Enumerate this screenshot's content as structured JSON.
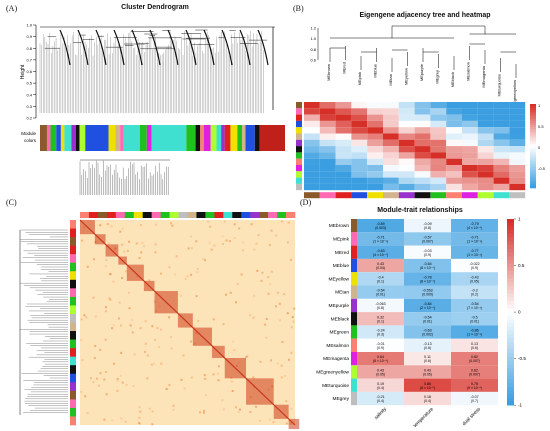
{
  "panels": {
    "a": {
      "letter": "(A)",
      "title": "Cluster Dendrogram",
      "ylabel": "Height",
      "yticks": [
        "1.0",
        "0.9",
        "0.8",
        "0.7",
        "0.6",
        "0.5",
        "0.4",
        "0.3",
        "0.2"
      ],
      "colorbar_label_1": "Module",
      "colorbar_label_2": "colors"
    },
    "b": {
      "letter": "(B)",
      "title": "Eigengene adjacency tree and heatmap",
      "yticks": [
        "1.2",
        "1.0",
        "0.8",
        "0.6"
      ],
      "modules": [
        "MEbrown",
        "MEred",
        "MEpink",
        "MEblue",
        "MEtan",
        "MEyellow",
        "MEpurple",
        "MEgrey",
        "MEblack",
        "MEsalmon",
        "MEmagenta",
        "MEturquoise",
        "MEgreenyellow"
      ],
      "legend_ticks": [
        "1",
        "0.5",
        "0",
        "-0.5"
      ]
    },
    "c": {
      "letter": "(C)"
    },
    "d": {
      "letter": "(D)",
      "title": "Module-trait relationships",
      "traits": [
        "salinity",
        "temperature",
        "dual stress"
      ],
      "legend_ticks": [
        "1",
        "0.5",
        "0",
        "-0.5",
        "-1"
      ]
    }
  },
  "colors": {
    "high": "#d62f27",
    "low": "#3a9ee0",
    "mid": "#ffffff",
    "heat_bg": "#fde3b8",
    "heat_dark": "#c7361c"
  },
  "chart_data": [
    {
      "type": "heatmap",
      "panel": "D",
      "title": "Module-trait relationships",
      "rows": [
        {
          "module": "MEbrown",
          "color": "#8b5a2b",
          "cells": [
            {
              "r": "-0.89",
              "p": "(0.003)",
              "v": -0.89
            },
            {
              "r": "-0.09",
              "p": "(0.8)",
              "v": -0.09
            },
            {
              "r": "-0.79",
              "p": "(4 × 10⁻⁴)",
              "v": -0.79
            }
          ]
        },
        {
          "module": "MEpink",
          "color": "#ff69b4",
          "cells": [
            {
              "r": "-0.71",
              "p": "(1 × 10⁻³)",
              "v": -0.71
            },
            {
              "r": "-0.57",
              "p": "(0.007)",
              "v": -0.57
            },
            {
              "r": "-0.71",
              "p": "(1 × 10⁻³)",
              "v": -0.71
            }
          ]
        },
        {
          "module": "MEred",
          "color": "#e02020",
          "cells": [
            {
              "r": "-0.83",
              "p": "(4 × 10⁻⁴)",
              "v": -0.83
            },
            {
              "r": "-0.03",
              "p": "(0.9)",
              "v": -0.03
            },
            {
              "r": "-0.77",
              "p": "(1 × 10⁻³)",
              "v": -0.77
            }
          ]
        },
        {
          "module": "MEblue",
          "color": "#2050e0",
          "cells": [
            {
              "r": "0.43",
              "p": "(0.04)",
              "v": 0.43
            },
            {
              "r": "-0.64",
              "p": "(8 × 10⁻⁴)",
              "v": -0.64
            },
            {
              "r": "-0.022",
              "p": "(0.9)",
              "v": -0.022
            }
          ]
        },
        {
          "module": "MEyellow",
          "color": "#f0e000",
          "cells": [
            {
              "r": "-0.4",
              "p": "(0.1)",
              "v": -0.4
            },
            {
              "r": "-0.78",
              "p": "(8 × 10⁻⁴)",
              "v": -0.78
            },
            {
              "r": "-0.43",
              "p": "(0.05)",
              "v": -0.43
            }
          ]
        },
        {
          "module": "MEtan",
          "color": "#d2b48c",
          "cells": [
            {
              "r": "-0.54",
              "p": "(0.01)",
              "v": -0.54
            },
            {
              "r": "-0.553",
              "p": "(0.009)",
              "v": -0.553
            },
            {
              "r": "-0.3",
              "p": "(0.2)",
              "v": -0.3
            }
          ]
        },
        {
          "module": "MEpurple",
          "color": "#9932cc",
          "cells": [
            {
              "r": "-0.063",
              "p": "(0.8)",
              "v": -0.063
            },
            {
              "r": "-0.84",
              "p": "(2 × 10⁻⁴)",
              "v": -0.84
            },
            {
              "r": "-0.54",
              "p": "(7 × 10⁻³)",
              "v": -0.54
            }
          ]
        },
        {
          "module": "MEblack",
          "color": "#111111",
          "cells": [
            {
              "r": "0.32",
              "p": "(0.1)",
              "v": 0.32
            },
            {
              "r": "-0.54",
              "p": "(0.01)",
              "v": -0.54
            },
            {
              "r": "-0.5",
              "p": "(0.01)",
              "v": -0.5
            }
          ]
        },
        {
          "module": "MEgreen",
          "color": "#20c020",
          "cells": [
            {
              "r": "-0.24",
              "p": "(0.3)",
              "v": -0.24
            },
            {
              "r": "-0.63",
              "p": "(0.002)",
              "v": -0.63
            },
            {
              "r": "-0.86",
              "p": "(1 × 10⁻³)",
              "v": -0.86
            }
          ]
        },
        {
          "module": "MEsalmon",
          "color": "#fa8072",
          "cells": [
            {
              "r": "-0.01",
              "p": "(0.9)",
              "v": -0.01
            },
            {
              "r": "-0.13",
              "p": "(0.6)",
              "v": -0.13
            },
            {
              "r": "0.13",
              "p": "(0.6)",
              "v": 0.13
            }
          ]
        },
        {
          "module": "MEmagenta",
          "color": "#e020e0",
          "cells": [
            {
              "r": "0.64",
              "p": "(8 × 10⁻⁴)",
              "v": 0.64
            },
            {
              "r": "0.11",
              "p": "(0.6)",
              "v": 0.11
            },
            {
              "r": "0.62",
              "p": "(0.007)",
              "v": 0.62
            }
          ]
        },
        {
          "module": "MEgreenyellow",
          "color": "#adff2f",
          "cells": [
            {
              "r": "0.43",
              "p": "(0.05)",
              "v": 0.43
            },
            {
              "r": "0.43",
              "p": "(0.05)",
              "v": 0.43
            },
            {
              "r": "0.62",
              "p": "(0.007)",
              "v": 0.62
            }
          ]
        },
        {
          "module": "MEturquoise",
          "color": "#40e0d0",
          "cells": [
            {
              "r": "0.19",
              "p": "(0.4)",
              "v": 0.19
            },
            {
              "r": "0.86",
              "p": "(6 × 10⁻⁵)",
              "v": 0.86
            },
            {
              "r": "0.75",
              "p": "(9 × 10⁻⁴)",
              "v": 0.75
            }
          ]
        },
        {
          "module": "MEgrey",
          "color": "#bebebe",
          "cells": [
            {
              "r": "-0.21",
              "p": "(0.4)",
              "v": -0.21
            },
            {
              "r": "0.18",
              "p": "(0.4)",
              "v": 0.18
            },
            {
              "r": "-0.07",
              "p": "(0.7)",
              "v": -0.07
            }
          ]
        }
      ],
      "legend_range": [
        -1,
        1
      ]
    }
  ]
}
